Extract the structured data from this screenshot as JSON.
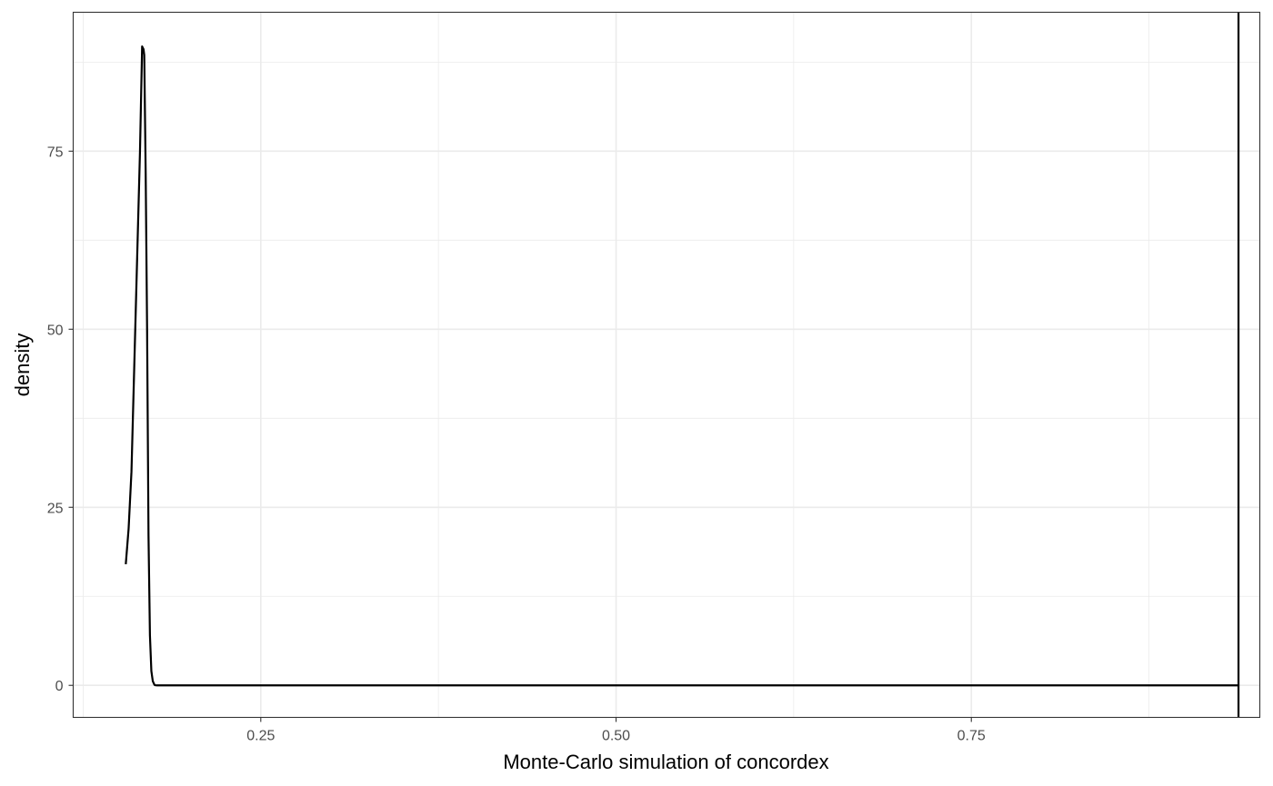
{
  "chart_data": {
    "type": "line",
    "title": "",
    "xlabel": "Monte-Carlo simulation of concordex",
    "ylabel": "density",
    "xlim": [
      0.118,
      0.953
    ],
    "ylim": [
      -4.5,
      94.5
    ],
    "x_ticks": [
      0.25,
      0.5,
      0.75
    ],
    "x_tick_labels": [
      "0.25",
      "0.50",
      "0.75"
    ],
    "y_ticks": [
      0,
      25,
      50,
      75
    ],
    "y_tick_labels": [
      "0",
      "25",
      "50",
      "75"
    ],
    "x_minor": [
      0.125,
      0.375,
      0.625,
      0.875
    ],
    "y_minor": [
      12.5,
      37.5,
      62.5,
      87.5
    ],
    "grid": true,
    "legend": "none",
    "series": [
      {
        "x": [
          0.155,
          0.157,
          0.159,
          0.161,
          0.163,
          0.165,
          0.1665,
          0.1675,
          0.168,
          0.169,
          0.17,
          0.171,
          0.172,
          0.173,
          0.174,
          0.175,
          0.1755,
          0.177,
          0.18,
          0.2,
          0.3,
          0.5,
          0.7,
          0.9,
          0.938
        ],
        "y": [
          17,
          22,
          30,
          45,
          60,
          75,
          89.7,
          89.3,
          88.5,
          72,
          50,
          21,
          7,
          2,
          0.6,
          0.15,
          0.02,
          0,
          0,
          0,
          0,
          0,
          0,
          0,
          0
        ]
      }
    ],
    "vlines": [
      0.938
    ]
  }
}
